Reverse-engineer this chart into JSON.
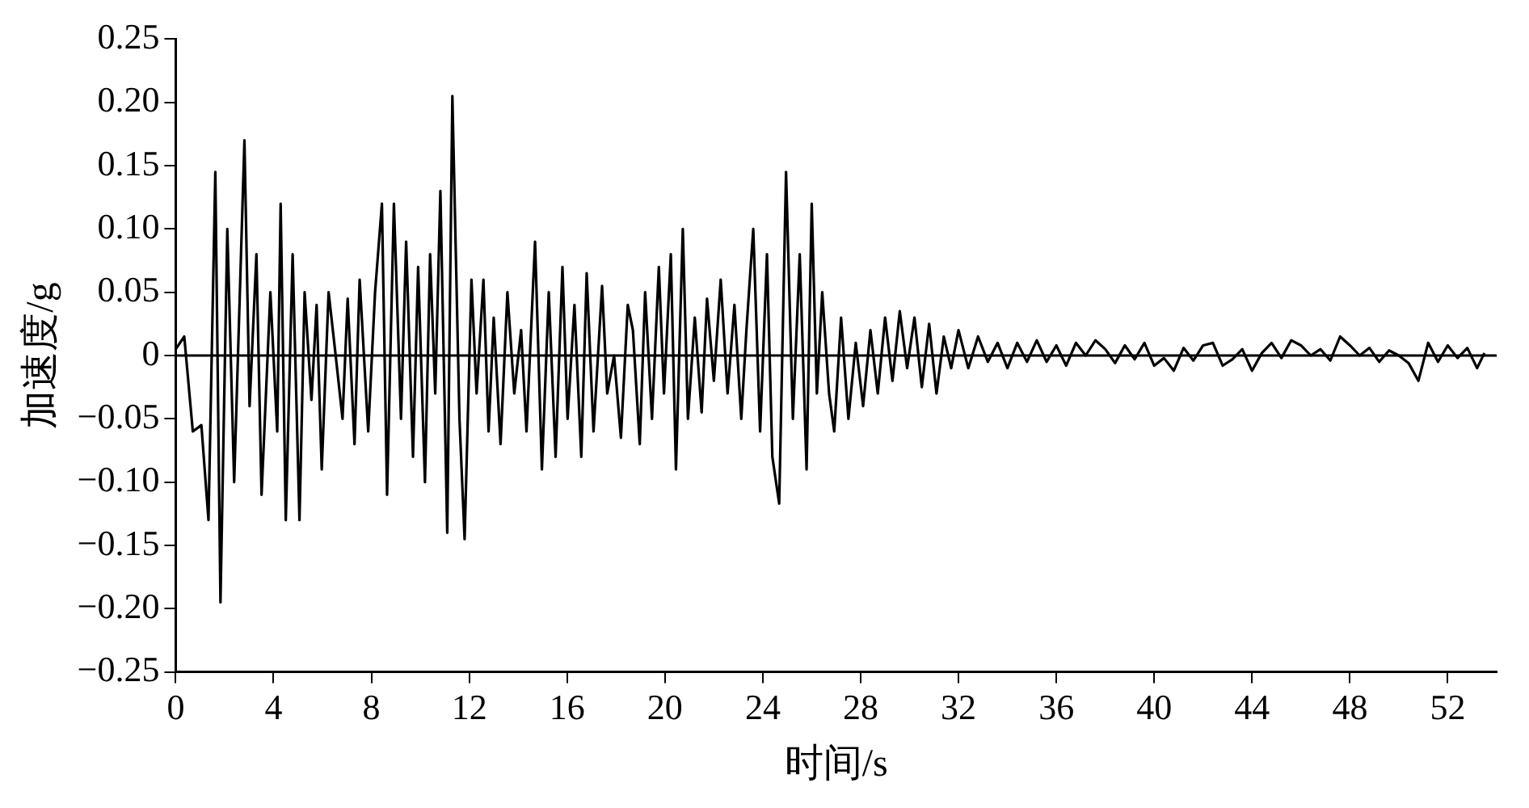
{
  "chart_data": {
    "type": "line",
    "xlabel": "时间/s",
    "ylabel": "加速度/g",
    "xlim": [
      0,
      54
    ],
    "xticks": [
      0,
      4,
      8,
      12,
      16,
      20,
      24,
      28,
      32,
      36,
      40,
      44,
      48,
      52
    ],
    "ylim": [
      -0.25,
      0.25
    ],
    "yticks": [
      {
        "value": 0.25,
        "label": "0.25"
      },
      {
        "value": 0.2,
        "label": "0.20"
      },
      {
        "value": 0.15,
        "label": "0.15"
      },
      {
        "value": 0.1,
        "label": "0.10"
      },
      {
        "value": 0.05,
        "label": "0.05"
      },
      {
        "value": 0,
        "label": "0"
      },
      {
        "value": -0.05,
        "label": "−0.05"
      },
      {
        "value": -0.1,
        "label": "−0.10"
      },
      {
        "value": -0.15,
        "label": "−0.15"
      },
      {
        "value": -0.2,
        "label": "−0.20"
      },
      {
        "value": -0.25,
        "label": "−0.25"
      }
    ],
    "grid": false,
    "legend": false,
    "marker": "none",
    "line_style": "solid",
    "ref_lines": [
      {
        "axis": "y",
        "value": 0,
        "color": "#000000"
      }
    ],
    "x": [
      0,
      0.35,
      0.7,
      1.05,
      1.34,
      1.62,
      1.83,
      2.11,
      2.39,
      2.81,
      3.02,
      3.3,
      3.51,
      3.87,
      4.15,
      4.29,
      4.5,
      4.78,
      5.06,
      5.27,
      5.55,
      5.76,
      5.97,
      6.25,
      6.54,
      6.82,
      7.03,
      7.31,
      7.52,
      7.87,
      8.15,
      8.43,
      8.64,
      8.92,
      9.21,
      9.42,
      9.7,
      9.91,
      10.19,
      10.4,
      10.61,
      10.82,
      11.1,
      11.31,
      11.6,
      11.81,
      12.09,
      12.3,
      12.58,
      12.79,
      13,
      13.28,
      13.56,
      13.84,
      14.12,
      14.34,
      14.69,
      14.97,
      15.25,
      15.53,
      15.81,
      16.02,
      16.3,
      16.58,
      16.8,
      17.08,
      17.43,
      17.64,
      17.92,
      18.2,
      18.48,
      18.69,
      18.97,
      19.19,
      19.47,
      19.75,
      19.96,
      20.24,
      20.45,
      20.73,
      20.94,
      21.22,
      21.5,
      21.72,
      22,
      22.28,
      22.56,
      22.84,
      23.12,
      23.33,
      23.61,
      23.89,
      24.17,
      24.39,
      24.67,
      24.95,
      25.23,
      25.51,
      25.79,
      26,
      26.21,
      26.43,
      26.71,
      26.92,
      27.2,
      27.5,
      27.8,
      28.1,
      28.4,
      28.7,
      29,
      29.3,
      29.6,
      29.9,
      30.2,
      30.5,
      30.8,
      31.1,
      31.4,
      31.7,
      32,
      32.4,
      32.8,
      33.2,
      33.6,
      34,
      34.4,
      34.8,
      35.2,
      35.6,
      36,
      36.4,
      36.8,
      37.2,
      37.6,
      38,
      38.4,
      38.8,
      39.2,
      39.6,
      40,
      40.4,
      40.8,
      41.2,
      41.6,
      42,
      42.4,
      42.8,
      43.2,
      43.6,
      44,
      44.4,
      44.8,
      45.2,
      45.6,
      46,
      46.4,
      46.8,
      47.2,
      47.6,
      48,
      48.4,
      48.8,
      49.2,
      49.6,
      50,
      50.4,
      50.8,
      51.2,
      51.6,
      52,
      52.4,
      52.8,
      53.2,
      53.5
    ],
    "series": [
      {
        "color": "#000000",
        "values": [
          0.005,
          0.015,
          -0.06,
          -0.055,
          -0.13,
          0.145,
          -0.195,
          0.1,
          -0.1,
          0.17,
          -0.04,
          0.08,
          -0.11,
          0.05,
          -0.06,
          0.12,
          -0.13,
          0.08,
          -0.13,
          0.05,
          -0.035,
          0.04,
          -0.09,
          0.05,
          0,
          -0.05,
          0.045,
          -0.07,
          0.06,
          -0.06,
          0.05,
          0.12,
          -0.11,
          0.12,
          -0.05,
          0.09,
          -0.08,
          0.07,
          -0.1,
          0.08,
          -0.03,
          0.13,
          -0.14,
          0.205,
          -0.05,
          -0.145,
          0.06,
          -0.03,
          0.06,
          -0.06,
          0.03,
          -0.07,
          0.05,
          -0.03,
          0.02,
          -0.06,
          0.09,
          -0.09,
          0.05,
          -0.08,
          0.07,
          -0.05,
          0.04,
          -0.08,
          0.065,
          -0.06,
          0.055,
          -0.03,
          0,
          -0.065,
          0.04,
          0.02,
          -0.07,
          0.05,
          -0.05,
          0.07,
          -0.03,
          0.08,
          -0.09,
          0.1,
          -0.05,
          0.03,
          -0.045,
          0.045,
          -0.02,
          0.06,
          -0.03,
          0.04,
          -0.05,
          0.02,
          0.1,
          -0.06,
          0.08,
          -0.08,
          -0.117,
          0.145,
          -0.05,
          0.08,
          -0.09,
          0.12,
          -0.03,
          0.05,
          -0.03,
          -0.06,
          0.03,
          -0.05,
          0.01,
          -0.04,
          0.02,
          -0.03,
          0.03,
          -0.02,
          0.035,
          -0.01,
          0.03,
          -0.025,
          0.025,
          -0.03,
          0.015,
          -0.01,
          0.02,
          -0.01,
          0.015,
          -0.005,
          0.01,
          -0.01,
          0.01,
          -0.005,
          0.012,
          -0.005,
          0.008,
          -0.008,
          0.01,
          0,
          0.012,
          0.005,
          -0.006,
          0.008,
          -0.003,
          0.01,
          -0.008,
          -0.002,
          -0.012,
          0.006,
          -0.004,
          0.008,
          0.01,
          -0.008,
          -0.003,
          0.005,
          -0.012,
          0.002,
          0.01,
          -0.002,
          0.012,
          0.008,
          0,
          0.005,
          -0.004,
          0.015,
          0.008,
          0,
          0.006,
          -0.005,
          0.004,
          0,
          -0.006,
          -0.02,
          0.01,
          -0.005,
          0.008,
          -0.002,
          0.006,
          -0.01,
          0.002
        ]
      }
    ]
  }
}
